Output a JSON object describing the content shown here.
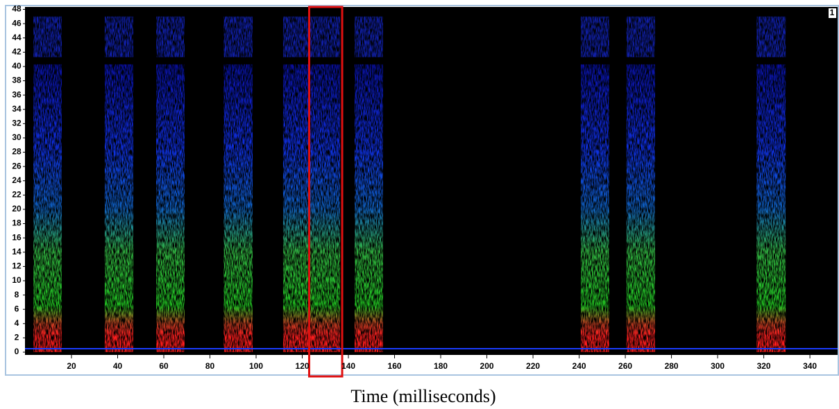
{
  "chart_data": {
    "type": "spectrogram",
    "x_label": "Time (milliseconds)",
    "corner_label": "1",
    "xlim": [
      0,
      352
    ],
    "xticks": [
      20,
      40,
      60,
      80,
      100,
      120,
      140,
      160,
      180,
      200,
      220,
      240,
      260,
      280,
      300,
      320,
      340
    ],
    "ylim": [
      0,
      48
    ],
    "yticks": [
      0,
      2,
      4,
      6,
      8,
      10,
      12,
      14,
      16,
      18,
      20,
      22,
      24,
      26,
      28,
      30,
      32,
      34,
      36,
      38,
      40,
      42,
      44,
      46,
      48
    ],
    "bursts": [
      [
        3.5,
        15.8
      ],
      [
        34.4,
        46.8
      ],
      [
        56.7,
        69
      ],
      [
        86,
        98.5
      ],
      [
        111.7,
        136.4
      ],
      [
        142.7,
        155
      ],
      [
        240.7,
        253
      ],
      [
        260.5,
        272.9
      ],
      [
        316.9,
        329.5
      ]
    ],
    "highlight": [
      123,
      137.3
    ],
    "highlight_color": "#e01010"
  }
}
